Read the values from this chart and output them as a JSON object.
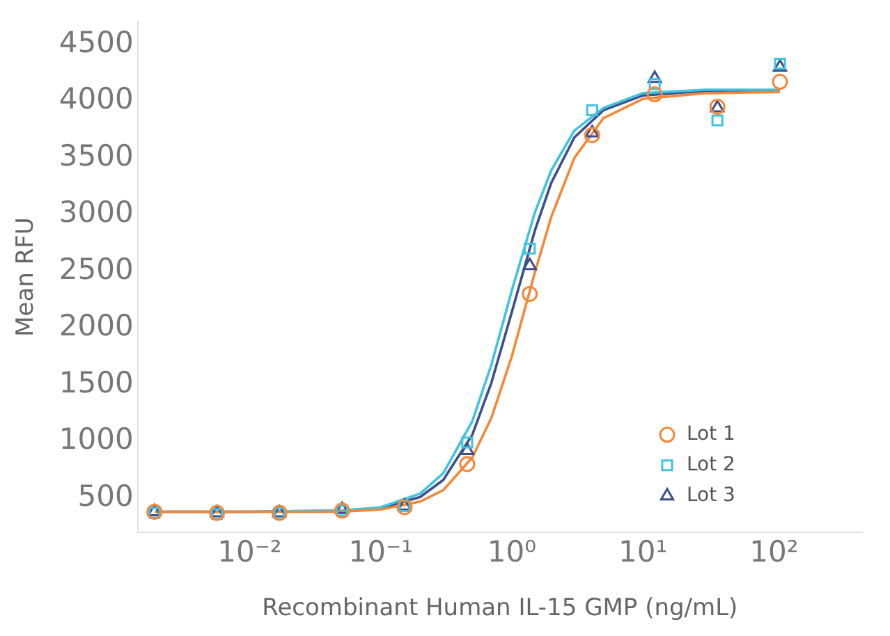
{
  "chart_data": {
    "type": "scatter",
    "xlabel": "Recombinant Human IL-15 GMP (ng/mL)",
    "ylabel": "Mean RFU",
    "log": "x",
    "grid": false,
    "legend": "bottom right",
    "xlim": [
      0.0014,
      470
    ],
    "ylim": [
      200,
      4700
    ],
    "xticks": [
      {
        "value": 0.01,
        "label": "10⁻²"
      },
      {
        "value": 0.1,
        "label": "10⁻¹"
      },
      {
        "value": 1,
        "label": "10⁰"
      },
      {
        "value": 10,
        "label": "10¹"
      },
      {
        "value": 100,
        "label": "10²"
      }
    ],
    "yticks": [
      500,
      1000,
      1500,
      2000,
      2500,
      3000,
      3500,
      4000,
      4500
    ],
    "series": [
      {
        "name": "Lot 1",
        "marker": "circle",
        "color": "#f4883a",
        "x": [
          0.00188,
          0.00564,
          0.0169,
          0.0508,
          0.152,
          0.457,
          1.37,
          4.1,
          12.3,
          37,
          111
        ],
        "values": [
          380,
          370,
          370,
          390,
          420,
          800,
          2300,
          3700,
          4060,
          3950,
          4170
        ]
      },
      {
        "name": "Lot 2",
        "marker": "square",
        "color": "#3ec3e0",
        "x": [
          0.00188,
          0.00564,
          0.0169,
          0.0508,
          0.152,
          0.457,
          1.37,
          4.1,
          12.3,
          37,
          111
        ],
        "values": [
          370,
          360,
          370,
          390,
          430,
          990,
          2700,
          3920,
          4150,
          3830,
          4330
        ]
      },
      {
        "name": "Lot 3",
        "marker": "triangle",
        "color": "#3c4e8c",
        "x": [
          0.00188,
          0.00564,
          0.0169,
          0.0508,
          0.152,
          0.457,
          1.37,
          4.1,
          12.3,
          37,
          111
        ],
        "values": [
          380,
          370,
          370,
          400,
          430,
          920,
          2550,
          3720,
          4200,
          3940,
          4300
        ]
      },
      {
        "type": "line",
        "marker": "none",
        "color": "#f4883a",
        "x": [
          0.0019,
          0.01,
          0.05,
          0.1,
          0.2,
          0.3,
          0.5,
          0.7,
          1,
          1.5,
          2,
          3,
          5,
          10,
          30,
          111
        ],
        "values": [
          380,
          380,
          380,
          400,
          470,
          570,
          860,
          1210,
          1750,
          2490,
          2980,
          3500,
          3850,
          4020,
          4070,
          4080
        ]
      },
      {
        "type": "line",
        "marker": "none",
        "color": "#3ec3e0",
        "x": [
          0.0019,
          0.01,
          0.05,
          0.1,
          0.2,
          0.3,
          0.5,
          0.7,
          1,
          1.5,
          2,
          3,
          5,
          10,
          30,
          111
        ],
        "values": [
          380,
          380,
          390,
          420,
          540,
          720,
          1180,
          1680,
          2330,
          3020,
          3390,
          3740,
          3940,
          4070,
          4100,
          4100
        ]
      },
      {
        "type": "line",
        "marker": "none",
        "color": "#3c4e8c",
        "x": [
          0.0019,
          0.01,
          0.05,
          0.1,
          0.2,
          0.3,
          0.5,
          0.7,
          1,
          1.5,
          2,
          3,
          5,
          10,
          30,
          111
        ],
        "values": [
          380,
          380,
          390,
          410,
          510,
          660,
          1060,
          1520,
          2140,
          2860,
          3280,
          3680,
          3920,
          4050,
          4090,
          4090
        ]
      }
    ]
  }
}
